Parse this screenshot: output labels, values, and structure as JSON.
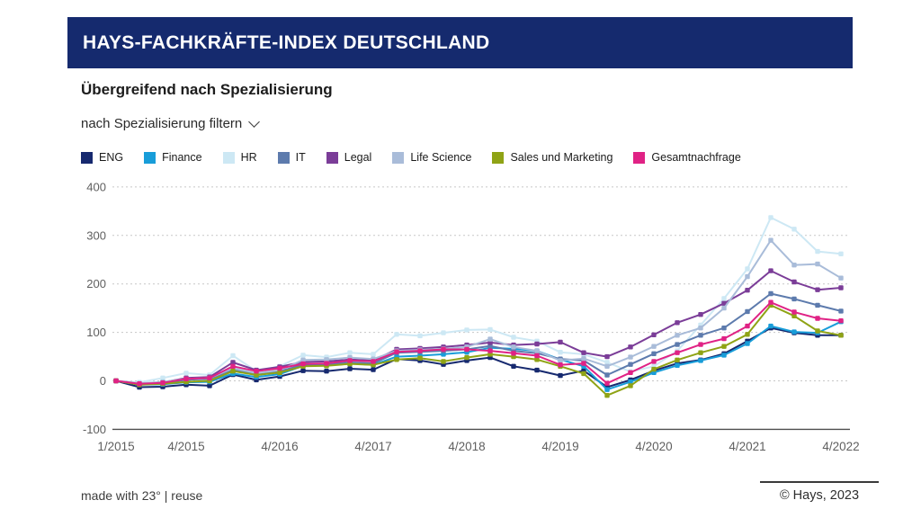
{
  "header": {
    "title": "HAYS-FACHKRÄFTE-INDEX DEUTSCHLAND"
  },
  "subtitle": "Übergreifend nach Spezialisierung",
  "filter": {
    "label": "nach Spezialisierung filtern",
    "icon": "chevron-down-icon"
  },
  "footer": {
    "left": "made with 23° | reuse",
    "right": "© Hays, 2023"
  },
  "colors": {
    "header_bar": "#152a6e",
    "grid_line": "#c7c7c7",
    "axis_line": "#4f4f4f",
    "tick_text": "#5f5f5f"
  },
  "chart_data": {
    "type": "line",
    "title": "HAYS-FACHKRÄFTE-INDEX DEUTSCHLAND — Übergreifend nach Spezialisierung",
    "xlabel": "",
    "ylabel": "",
    "ylim": [
      -100,
      400
    ],
    "yticks": [
      -100,
      0,
      100,
      200,
      300,
      400
    ],
    "grid": "horizontal-dashed",
    "legend_position": "top",
    "x_tick_labels": [
      "1/2015",
      "4/2015",
      "4/2016",
      "4/2017",
      "4/2018",
      "4/2019",
      "4/2020",
      "4/2021",
      "4/2022"
    ],
    "x_tick_indices": [
      0,
      3,
      7,
      11,
      15,
      19,
      23,
      27,
      31
    ],
    "categories": [
      "1/2015",
      "2/2015",
      "3/2015",
      "4/2015",
      "1/2016",
      "2/2016",
      "3/2016",
      "4/2016",
      "1/2017",
      "2/2017",
      "3/2017",
      "4/2017",
      "1/2018",
      "2/2018",
      "3/2018",
      "4/2018",
      "1/2019",
      "2/2019",
      "3/2019",
      "4/2019",
      "1/2020",
      "2/2020",
      "3/2020",
      "4/2020",
      "1/2021",
      "2/2021",
      "3/2021",
      "4/2021",
      "1/2022",
      "2/2022",
      "3/2022",
      "4/2022"
    ],
    "series": [
      {
        "name": "ENG",
        "color": "#16296f",
        "values": [
          0,
          -13,
          -12,
          -8,
          -10,
          13,
          2,
          9,
          21,
          20,
          25,
          23,
          45,
          42,
          34,
          42,
          48,
          30,
          22,
          11,
          21,
          -13,
          2,
          21,
          36,
          43,
          56,
          82,
          109,
          99,
          94,
          94
        ]
      },
      {
        "name": "Finance",
        "color": "#189dd9",
        "values": [
          0,
          -8,
          -7,
          -3,
          -2,
          15,
          8,
          14,
          31,
          32,
          36,
          33,
          50,
          52,
          55,
          59,
          68,
          66,
          62,
          44,
          30,
          -18,
          -2,
          17,
          32,
          42,
          53,
          77,
          113,
          101,
          99,
          122
        ]
      },
      {
        "name": "HR",
        "color": "#cde8f4",
        "values": [
          0,
          -3,
          6,
          16,
          12,
          52,
          20,
          30,
          53,
          49,
          58,
          55,
          96,
          93,
          99,
          105,
          106,
          90,
          82,
          59,
          55,
          38,
          19,
          30,
          62,
          115,
          170,
          231,
          337,
          313,
          267,
          262
        ]
      },
      {
        "name": "IT",
        "color": "#5d7bad",
        "values": [
          0,
          -8,
          -4,
          2,
          4,
          22,
          15,
          20,
          33,
          34,
          38,
          36,
          58,
          60,
          62,
          65,
          72,
          62,
          57,
          45,
          42,
          12,
          34,
          56,
          75,
          94,
          109,
          143,
          180,
          169,
          156,
          144
        ]
      },
      {
        "name": "Legal",
        "color": "#7b3d98",
        "values": [
          0,
          -6,
          -3,
          6,
          8,
          38,
          22,
          29,
          39,
          40,
          44,
          42,
          65,
          67,
          70,
          74,
          79,
          74,
          76,
          80,
          58,
          50,
          70,
          95,
          120,
          137,
          160,
          187,
          227,
          204,
          188,
          192
        ]
      },
      {
        "name": "Life Science",
        "color": "#a9bcd9",
        "values": [
          0,
          -5,
          -2,
          4,
          6,
          26,
          16,
          22,
          43,
          44,
          48,
          45,
          62,
          64,
          66,
          70,
          86,
          70,
          62,
          42,
          46,
          30,
          49,
          71,
          94,
          109,
          150,
          215,
          290,
          239,
          241,
          212
        ]
      },
      {
        "name": "Sales und Marketing",
        "color": "#8fa315",
        "values": [
          0,
          -8,
          -6,
          -2,
          0,
          20,
          12,
          17,
          30,
          31,
          35,
          33,
          44,
          47,
          40,
          48,
          55,
          50,
          44,
          30,
          15,
          -30,
          -10,
          24,
          43,
          58,
          71,
          96,
          156,
          134,
          103,
          94
        ]
      },
      {
        "name": "Gesamtnachfrage",
        "color": "#e02285",
        "values": [
          0,
          -6,
          -4,
          4,
          6,
          30,
          20,
          26,
          35,
          36,
          42,
          40,
          60,
          62,
          65,
          65,
          62,
          57,
          52,
          33,
          36,
          -5,
          17,
          40,
          58,
          75,
          87,
          113,
          162,
          142,
          129,
          124
        ]
      }
    ]
  }
}
